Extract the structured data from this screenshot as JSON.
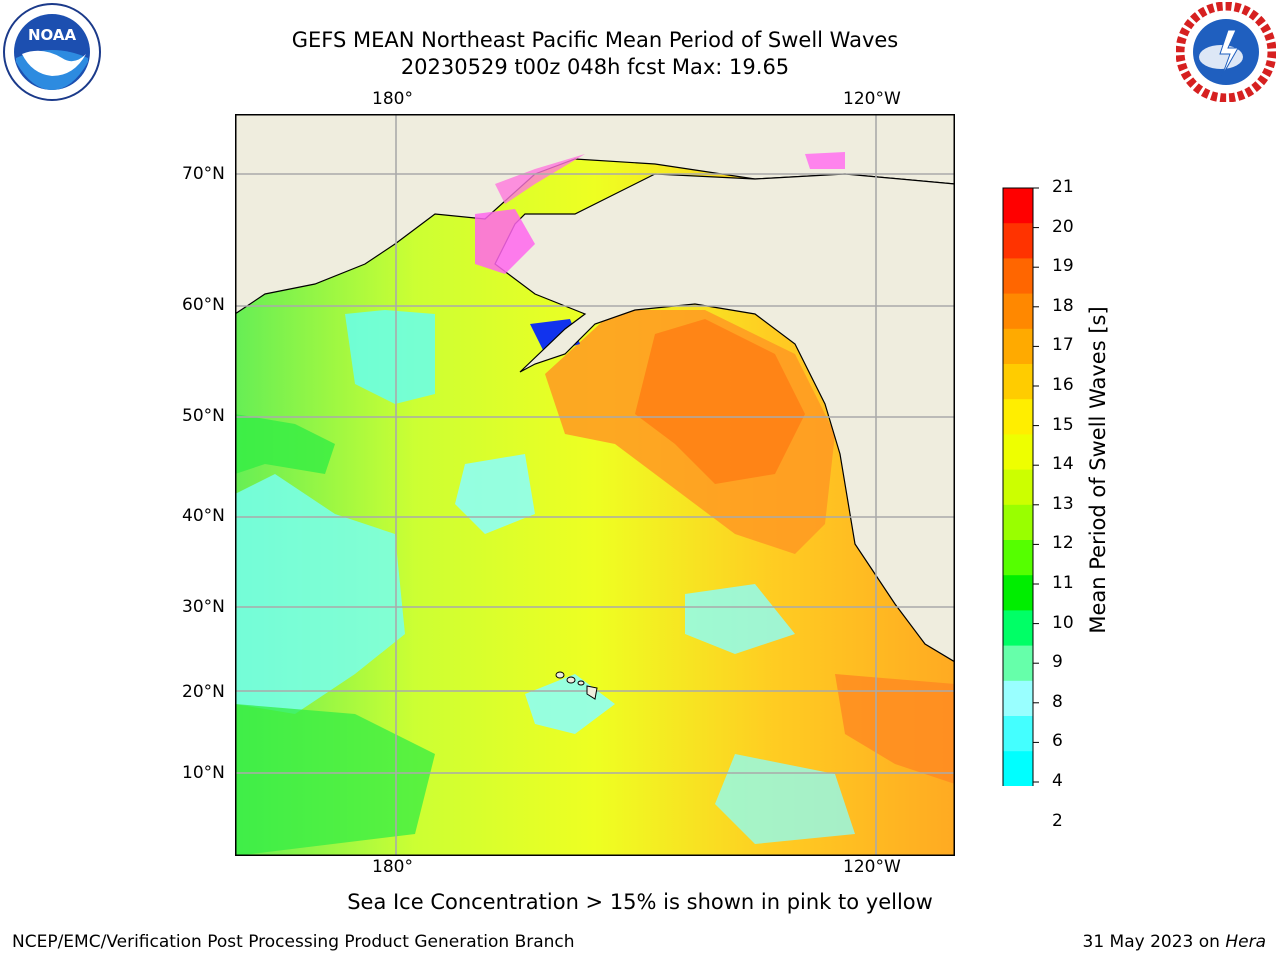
{
  "title": {
    "line1": "GEFS MEAN Northeast Pacific Mean Period of Swell Waves",
    "line2": "20230529 t00z 048h fcst   Max: 19.65"
  },
  "logos": {
    "left": {
      "icon": "noaa-logo",
      "text": "NOAA"
    },
    "right": {
      "icon": "national-weather-service-logo"
    }
  },
  "map": {
    "top_lon_labels": [
      "180°",
      "120°W"
    ],
    "bottom_lon_labels": [
      "180°",
      "120°W"
    ],
    "lat_labels": [
      "70°N",
      "60°N",
      "50°N",
      "40°N",
      "30°N",
      "20°N",
      "10°N"
    ],
    "land_color": "#efedde",
    "grid_color": "#aaaaaa"
  },
  "colorbar": {
    "label": "Mean Period of Swell Waves [s]",
    "ticks": [
      "21",
      "20",
      "19",
      "18",
      "17",
      "16",
      "15",
      "14",
      "13",
      "12",
      "11",
      "10",
      "9",
      "8",
      "6",
      "4",
      "2"
    ],
    "colors": [
      "#ff0000",
      "#ff3300",
      "#ff6600",
      "#ff8800",
      "#ffaa00",
      "#ffcc00",
      "#ffee00",
      "#eeff00",
      "#ccff00",
      "#99ff00",
      "#55ff00",
      "#00ee00",
      "#00ff66",
      "#66ffaa",
      "#99ffff",
      "#44ffff",
      "#00ffff",
      "#0066ff",
      "#0000ff"
    ]
  },
  "caption": "Sea Ice Concentration > 15% is shown in pink to yellow",
  "footer": {
    "left": "NCEP/EMC/Verification Post Processing Product Generation Branch",
    "right_date": "31 May 2023 on ",
    "right_machine": "Hera"
  }
}
